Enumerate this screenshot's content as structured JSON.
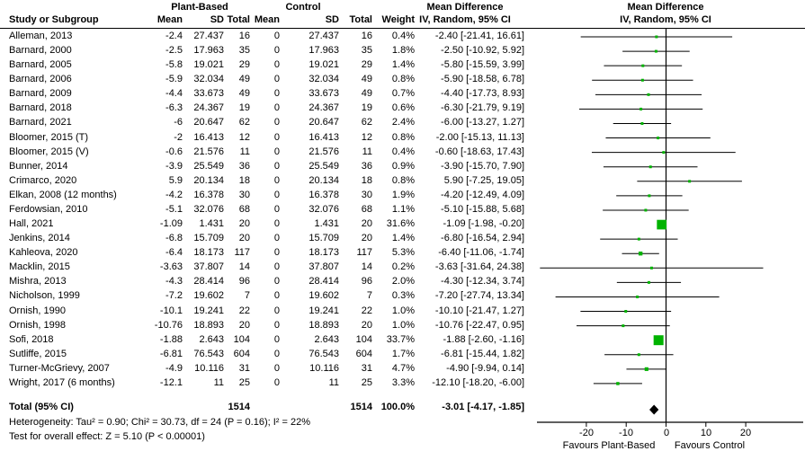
{
  "header": {
    "study_col": "Study or Subgroup",
    "group_plant": "Plant-Based",
    "group_control": "Control",
    "mean": "Mean",
    "sd": "SD",
    "total": "Total",
    "weight": "Weight",
    "md_title": "Mean Difference",
    "md_subtitle": "IV, Random, 95% CI"
  },
  "footer": {
    "heterogeneity": "Heterogeneity: Tau² = 0.90; Chi² = 30.73, df = 24 (P = 0.16); I² = 22%",
    "overall_effect": "Test for overall effect: Z = 5.10 (P < 0.00001)"
  },
  "chart_data": {
    "type": "scatter",
    "variant": "forest-plot",
    "title": "Mean Difference",
    "effect_measure": "IV, Random, 95% CI",
    "x_axis": {
      "ticks": [
        -20,
        -10,
        0,
        10,
        20
      ],
      "label_left": "Favours Plant-Based",
      "label_right": "Favours Control"
    },
    "marker_color": "#00B300",
    "diamond_color": "#000000",
    "studies": [
      {
        "name": "Alleman, 2013",
        "plant": {
          "mean": "-2.4",
          "sd": "27.437",
          "total": "16"
        },
        "control": {
          "mean": "0",
          "sd": "27.437",
          "total": "16"
        },
        "weight": 0.4,
        "md": -2.4,
        "lo": -21.41,
        "hi": 16.61,
        "ci_label": "-2.40 [-21.41, 16.61]"
      },
      {
        "name": "Barnard, 2000",
        "plant": {
          "mean": "-2.5",
          "sd": "17.963",
          "total": "35"
        },
        "control": {
          "mean": "0",
          "sd": "17.963",
          "total": "35"
        },
        "weight": 1.8,
        "md": -2.5,
        "lo": -10.92,
        "hi": 5.92,
        "ci_label": "-2.50 [-10.92, 5.92]"
      },
      {
        "name": "Barnard, 2005",
        "plant": {
          "mean": "-5.8",
          "sd": "19.021",
          "total": "29"
        },
        "control": {
          "mean": "0",
          "sd": "19.021",
          "total": "29"
        },
        "weight": 1.4,
        "md": -5.8,
        "lo": -15.59,
        "hi": 3.99,
        "ci_label": "-5.80 [-15.59, 3.99]"
      },
      {
        "name": "Barnard, 2006",
        "plant": {
          "mean": "-5.9",
          "sd": "32.034",
          "total": "49"
        },
        "control": {
          "mean": "0",
          "sd": "32.034",
          "total": "49"
        },
        "weight": 0.8,
        "md": -5.9,
        "lo": -18.58,
        "hi": 6.78,
        "ci_label": "-5.90 [-18.58, 6.78]"
      },
      {
        "name": "Barnard, 2009",
        "plant": {
          "mean": "-4.4",
          "sd": "33.673",
          "total": "49"
        },
        "control": {
          "mean": "0",
          "sd": "33.673",
          "total": "49"
        },
        "weight": 0.7,
        "md": -4.4,
        "lo": -17.73,
        "hi": 8.93,
        "ci_label": "-4.40 [-17.73, 8.93]"
      },
      {
        "name": "Barnard, 2018",
        "plant": {
          "mean": "-6.3",
          "sd": "24.367",
          "total": "19"
        },
        "control": {
          "mean": "0",
          "sd": "24.367",
          "total": "19"
        },
        "weight": 0.6,
        "md": -6.3,
        "lo": -21.79,
        "hi": 9.19,
        "ci_label": "-6.30 [-21.79, 9.19]"
      },
      {
        "name": "Barnard, 2021",
        "plant": {
          "mean": "-6",
          "sd": "20.647",
          "total": "62"
        },
        "control": {
          "mean": "0",
          "sd": "20.647",
          "total": "62"
        },
        "weight": 2.4,
        "md": -6.0,
        "lo": -13.27,
        "hi": 1.27,
        "ci_label": "-6.00 [-13.27, 1.27]"
      },
      {
        "name": "Bloomer, 2015 (T)",
        "plant": {
          "mean": "-2",
          "sd": "16.413",
          "total": "12"
        },
        "control": {
          "mean": "0",
          "sd": "16.413",
          "total": "12"
        },
        "weight": 0.8,
        "md": -2.0,
        "lo": -15.13,
        "hi": 11.13,
        "ci_label": "-2.00 [-15.13, 11.13]"
      },
      {
        "name": "Bloomer, 2015 (V)",
        "plant": {
          "mean": "-0.6",
          "sd": "21.576",
          "total": "11"
        },
        "control": {
          "mean": "0",
          "sd": "21.576",
          "total": "11"
        },
        "weight": 0.4,
        "md": -0.6,
        "lo": -18.63,
        "hi": 17.43,
        "ci_label": "-0.60 [-18.63, 17.43]"
      },
      {
        "name": "Bunner, 2014",
        "plant": {
          "mean": "-3.9",
          "sd": "25.549",
          "total": "36"
        },
        "control": {
          "mean": "0",
          "sd": "25.549",
          "total": "36"
        },
        "weight": 0.9,
        "md": -3.9,
        "lo": -15.7,
        "hi": 7.9,
        "ci_label": "-3.90 [-15.70, 7.90]"
      },
      {
        "name": "Crimarco, 2020",
        "plant": {
          "mean": "5.9",
          "sd": "20.134",
          "total": "18"
        },
        "control": {
          "mean": "0",
          "sd": "20.134",
          "total": "18"
        },
        "weight": 0.8,
        "md": 5.9,
        "lo": -7.25,
        "hi": 19.05,
        "ci_label": "5.90 [-7.25, 19.05]"
      },
      {
        "name": "Elkan, 2008 (12 months)",
        "plant": {
          "mean": "-4.2",
          "sd": "16.378",
          "total": "30"
        },
        "control": {
          "mean": "0",
          "sd": "16.378",
          "total": "30"
        },
        "weight": 1.9,
        "md": -4.2,
        "lo": -12.49,
        "hi": 4.09,
        "ci_label": "-4.20 [-12.49, 4.09]"
      },
      {
        "name": "Ferdowsian, 2010",
        "plant": {
          "mean": "-5.1",
          "sd": "32.076",
          "total": "68"
        },
        "control": {
          "mean": "0",
          "sd": "32.076",
          "total": "68"
        },
        "weight": 1.1,
        "md": -5.1,
        "lo": -15.88,
        "hi": 5.68,
        "ci_label": "-5.10 [-15.88, 5.68]"
      },
      {
        "name": "Hall, 2021",
        "plant": {
          "mean": "-1.09",
          "sd": "1.431",
          "total": "20"
        },
        "control": {
          "mean": "0",
          "sd": "1.431",
          "total": "20"
        },
        "weight": 31.6,
        "md": -1.09,
        "lo": -1.98,
        "hi": -0.2,
        "ci_label": "-1.09 [-1.98, -0.20]"
      },
      {
        "name": "Jenkins, 2014",
        "plant": {
          "mean": "-6.8",
          "sd": "15.709",
          "total": "20"
        },
        "control": {
          "mean": "0",
          "sd": "15.709",
          "total": "20"
        },
        "weight": 1.4,
        "md": -6.8,
        "lo": -16.54,
        "hi": 2.94,
        "ci_label": "-6.80 [-16.54, 2.94]"
      },
      {
        "name": "Kahleova, 2020",
        "plant": {
          "mean": "-6.4",
          "sd": "18.173",
          "total": "117"
        },
        "control": {
          "mean": "0",
          "sd": "18.173",
          "total": "117"
        },
        "weight": 5.3,
        "md": -6.4,
        "lo": -11.06,
        "hi": -1.74,
        "ci_label": "-6.40 [-11.06, -1.74]"
      },
      {
        "name": "Macklin, 2015",
        "plant": {
          "mean": "-3.63",
          "sd": "37.807",
          "total": "14"
        },
        "control": {
          "mean": "0",
          "sd": "37.807",
          "total": "14"
        },
        "weight": 0.2,
        "md": -3.63,
        "lo": -31.64,
        "hi": 24.38,
        "ci_label": "-3.63 [-31.64, 24.38]"
      },
      {
        "name": "Mishra, 2013",
        "plant": {
          "mean": "-4.3",
          "sd": "28.414",
          "total": "96"
        },
        "control": {
          "mean": "0",
          "sd": "28.414",
          "total": "96"
        },
        "weight": 2.0,
        "md": -4.3,
        "lo": -12.34,
        "hi": 3.74,
        "ci_label": "-4.30 [-12.34, 3.74]"
      },
      {
        "name": "Nicholson, 1999",
        "plant": {
          "mean": "-7.2",
          "sd": "19.602",
          "total": "7"
        },
        "control": {
          "mean": "0",
          "sd": "19.602",
          "total": "7"
        },
        "weight": 0.3,
        "md": -7.2,
        "lo": -27.74,
        "hi": 13.34,
        "ci_label": "-7.20 [-27.74, 13.34]"
      },
      {
        "name": "Ornish, 1990",
        "plant": {
          "mean": "-10.1",
          "sd": "19.241",
          "total": "22"
        },
        "control": {
          "mean": "0",
          "sd": "19.241",
          "total": "22"
        },
        "weight": 1.0,
        "md": -10.1,
        "lo": -21.47,
        "hi": 1.27,
        "ci_label": "-10.10 [-21.47, 1.27]"
      },
      {
        "name": "Ornish, 1998",
        "plant": {
          "mean": "-10.76",
          "sd": "18.893",
          "total": "20"
        },
        "control": {
          "mean": "0",
          "sd": "18.893",
          "total": "20"
        },
        "weight": 1.0,
        "md": -10.76,
        "lo": -22.47,
        "hi": 0.95,
        "ci_label": "-10.76 [-22.47, 0.95]"
      },
      {
        "name": "Sofi, 2018",
        "plant": {
          "mean": "-1.88",
          "sd": "2.643",
          "total": "104"
        },
        "control": {
          "mean": "0",
          "sd": "2.643",
          "total": "104"
        },
        "weight": 33.7,
        "md": -1.88,
        "lo": -2.6,
        "hi": -1.16,
        "ci_label": "-1.88 [-2.60, -1.16]"
      },
      {
        "name": "Sutliffe, 2015",
        "plant": {
          "mean": "-6.81",
          "sd": "76.543",
          "total": "604"
        },
        "control": {
          "mean": "0",
          "sd": "76.543",
          "total": "604"
        },
        "weight": 1.7,
        "md": -6.81,
        "lo": -15.44,
        "hi": 1.82,
        "ci_label": "-6.81 [-15.44, 1.82]"
      },
      {
        "name": "Turner-McGrievy, 2007",
        "plant": {
          "mean": "-4.9",
          "sd": "10.116",
          "total": "31"
        },
        "control": {
          "mean": "0",
          "sd": "10.116",
          "total": "31"
        },
        "weight": 4.7,
        "md": -4.9,
        "lo": -9.94,
        "hi": 0.14,
        "ci_label": "-4.90 [-9.94, 0.14]"
      },
      {
        "name": "Wright, 2017 (6 months)",
        "plant": {
          "mean": "-12.1",
          "sd": "11",
          "total": "25"
        },
        "control": {
          "mean": "0",
          "sd": "11",
          "total": "25"
        },
        "weight": 3.3,
        "md": -12.1,
        "lo": -18.2,
        "hi": -6.0,
        "ci_label": "-12.10 [-18.20, -6.00]"
      }
    ],
    "total": {
      "label": "Total (95% CI)",
      "plant_total": "1514",
      "control_total": "1514",
      "weight_label": "100.0%",
      "md": -3.01,
      "lo": -4.17,
      "hi": -1.85,
      "ci_label": "-3.01 [-4.17, -1.85]"
    }
  }
}
